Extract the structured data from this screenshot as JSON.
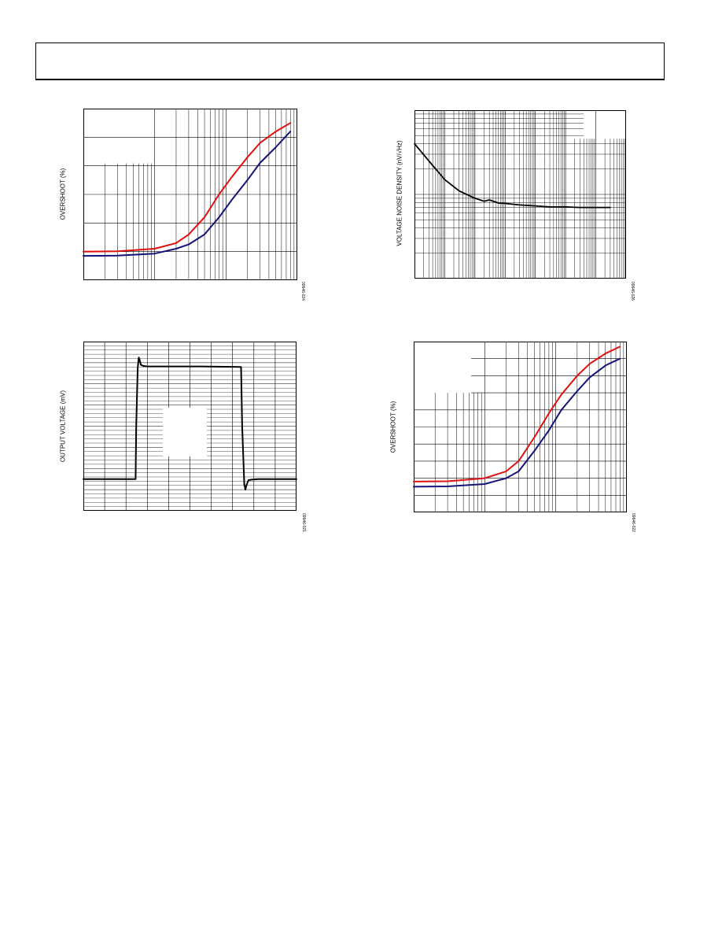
{
  "page": {
    "header_text": ""
  },
  "chart_data": [
    {
      "id": "tl",
      "type": "line",
      "title": "",
      "xlabel": "",
      "ylabel": "OVERSHOOT (%)",
      "figure_id": "09646-024",
      "x_scale": "log",
      "xlim": [
        1,
        1000
      ],
      "ylim": [
        0,
        60
      ],
      "series": [
        {
          "name": "",
          "color": "#e01010",
          "x": [
            1,
            3,
            10,
            20,
            30,
            50,
            80,
            120,
            200,
            300,
            500,
            800
          ],
          "y": [
            10,
            10.1,
            11,
            13,
            16,
            22,
            30,
            36,
            43,
            48,
            52,
            55
          ]
        },
        {
          "name": "",
          "color": "#141478",
          "x": [
            1,
            3,
            10,
            20,
            30,
            50,
            80,
            120,
            200,
            300,
            500,
            800
          ],
          "y": [
            8.5,
            8.6,
            9.3,
            11,
            12.5,
            16,
            22,
            28,
            35,
            41,
            46.5,
            52
          ]
        }
      ]
    },
    {
      "id": "tr",
      "type": "line",
      "title": "",
      "xlabel": "",
      "ylabel": "VOLTAGE NOISE DENSITY (nV/√Hz)",
      "figure_id": "09646-026",
      "x_scale": "log",
      "y_scale": "log",
      "xlim": [
        1,
        10000000
      ],
      "ylim": [
        1,
        100
      ],
      "series": [
        {
          "name": "",
          "color": "#000000",
          "x": [
            1,
            3,
            10,
            30,
            100,
            200,
            300,
            600,
            1000,
            3000,
            10000,
            30000,
            100000,
            300000,
            1000000,
            3000000
          ],
          "y": [
            40,
            25,
            15,
            11,
            9,
            8.3,
            8.6,
            7.9,
            7.8,
            7.5,
            7.3,
            7.1,
            7.1,
            7.0,
            7.0,
            7.0
          ]
        }
      ]
    },
    {
      "id": "bl",
      "type": "line",
      "title": "",
      "xlabel": "",
      "ylabel": "OUTPUT VOLTAGE (mV)",
      "figure_id": "09646-021",
      "xlim": [
        0,
        10
      ],
      "ylim": [
        -8,
        8
      ],
      "series": [
        {
          "name": "",
          "color": "#000000",
          "x": [
            0,
            2.45,
            2.48,
            2.55,
            2.6,
            2.65,
            2.7,
            2.8,
            3.0,
            3.3,
            5.5,
            7.4,
            7.45,
            7.55,
            7.6,
            7.65,
            7.75,
            7.9,
            8.2,
            10
          ],
          "y": [
            -5,
            -5,
            0,
            5.5,
            6.5,
            6.2,
            5.8,
            5.7,
            5.65,
            5.65,
            5.65,
            5.6,
            0,
            -5.5,
            -6,
            -5.6,
            -5.1,
            -5.05,
            -5,
            -5
          ]
        }
      ]
    },
    {
      "id": "br",
      "type": "line",
      "title": "",
      "xlabel": "",
      "ylabel": "OVERSHOOT (%)",
      "figure_id": "09646-022",
      "x_scale": "log",
      "xlim": [
        1,
        1000
      ],
      "ylim": [
        0,
        50
      ],
      "series": [
        {
          "name": "",
          "color": "#e01010",
          "x": [
            1,
            3,
            10,
            20,
            30,
            50,
            80,
            120,
            200,
            300,
            500,
            800
          ],
          "y": [
            9,
            9.1,
            10,
            12,
            15,
            22,
            29,
            34.5,
            40,
            43.5,
            46.5,
            48.5
          ]
        },
        {
          "name": "",
          "color": "#141478",
          "x": [
            1,
            3,
            10,
            20,
            30,
            50,
            80,
            120,
            200,
            300,
            500,
            800
          ],
          "y": [
            7.5,
            7.6,
            8.3,
            10,
            12,
            18,
            24,
            30,
            35.5,
            39.5,
            43,
            45
          ]
        }
      ]
    }
  ]
}
